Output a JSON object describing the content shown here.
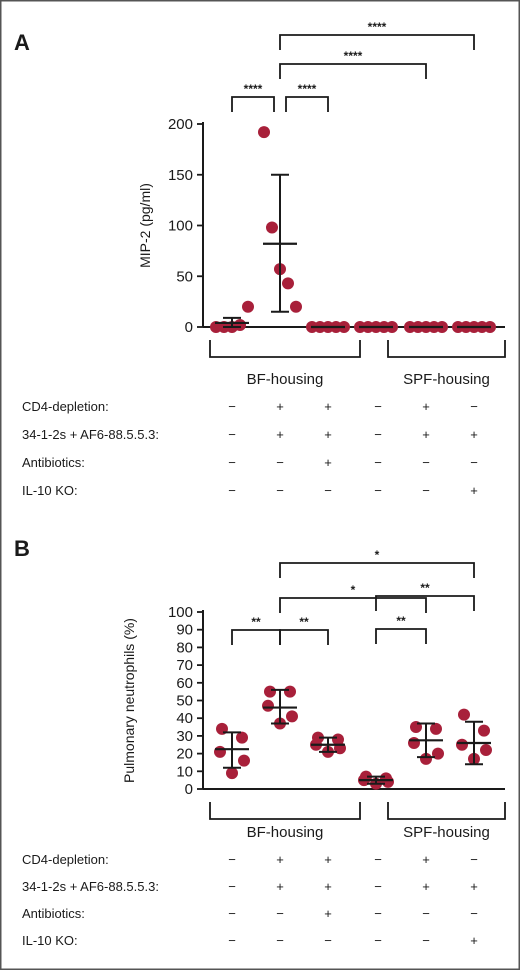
{
  "colors": {
    "dot": "#a8203a",
    "line": "#1a1a1a",
    "border": "#555555"
  },
  "chart_data": [
    {
      "type": "scatter",
      "panel": "A",
      "ylabel": "MIP-2 (pg/ml)",
      "ylim": [
        0,
        200
      ],
      "yticks": [
        0,
        50,
        100,
        150,
        200
      ],
      "categories": [
        "1",
        "2",
        "3",
        "4",
        "5",
        "6"
      ],
      "points": [
        [
          0,
          0,
          0,
          2,
          20
        ],
        [
          192,
          98,
          57,
          43,
          20
        ],
        [
          0,
          0,
          0,
          0,
          0
        ],
        [
          0,
          0,
          0,
          0,
          0
        ],
        [
          0,
          0,
          0,
          0,
          0
        ],
        [
          0,
          0,
          0,
          0,
          0
        ]
      ],
      "means": [
        4,
        82,
        0,
        0,
        0,
        0
      ],
      "sd_low": [
        0,
        15,
        0,
        0,
        0,
        0
      ],
      "sd_high": [
        9,
        150,
        0,
        0,
        0,
        0
      ],
      "comparisons": [
        {
          "from": 0,
          "to": 1,
          "label": "****",
          "level": 0
        },
        {
          "from": 1,
          "to": 2,
          "label": "****",
          "level": 0
        },
        {
          "from": 1,
          "to": 4,
          "label": "****",
          "level": 1
        },
        {
          "from": 1,
          "to": 5,
          "label": "****",
          "level": 2
        }
      ],
      "groups": [
        "BF-housing",
        "SPF-housing"
      ],
      "conditions": [
        {
          "label": "CD4-depletion:",
          "values": [
            "−",
            "+",
            "+",
            "−",
            "+",
            "−"
          ]
        },
        {
          "label": "34-1-2s + AF6-88.5.5.3:",
          "values": [
            "−",
            "+",
            "+",
            "−",
            "+",
            "+"
          ]
        },
        {
          "label": "Antibiotics:",
          "values": [
            "−",
            "−",
            "+",
            "−",
            "−",
            "−"
          ]
        },
        {
          "label": "IL-10 KO:",
          "values": [
            "−",
            "−",
            "−",
            "−",
            "−",
            "+"
          ]
        }
      ]
    },
    {
      "type": "scatter",
      "panel": "B",
      "ylabel": "Pulmonary neutrophils (%)",
      "ylim": [
        0,
        100
      ],
      "yticks": [
        0,
        10,
        20,
        30,
        40,
        50,
        60,
        70,
        80,
        90,
        100
      ],
      "categories": [
        "1",
        "2",
        "3",
        "4",
        "5",
        "6"
      ],
      "points": [
        [
          34,
          29,
          21,
          16,
          9
        ],
        [
          55,
          55,
          47,
          41,
          37
        ],
        [
          29,
          28,
          25,
          23,
          21
        ],
        [
          7,
          6,
          5,
          4,
          3
        ],
        [
          35,
          34,
          26,
          20,
          17
        ],
        [
          42,
          33,
          25,
          22,
          17
        ]
      ],
      "means": [
        22.5,
        46,
        25,
        5,
        27.5,
        26
      ],
      "sd_low": [
        12,
        37,
        21,
        3,
        18,
        14
      ],
      "sd_high": [
        32,
        56,
        29,
        7,
        37,
        38
      ],
      "comparisons": [
        {
          "from": 0,
          "to": 1,
          "label": "**",
          "level": 0
        },
        {
          "from": 1,
          "to": 2,
          "label": "**",
          "level": 0
        },
        {
          "from": 3,
          "to": 4,
          "label": "**",
          "level": 0
        },
        {
          "from": 3,
          "to": 5,
          "label": "**",
          "level": 1
        },
        {
          "from": 1,
          "to": 4,
          "label": "*",
          "level": 2
        },
        {
          "from": 1,
          "to": 5,
          "label": "*",
          "level": 3
        }
      ],
      "groups": [
        "BF-housing",
        "SPF-housing"
      ],
      "conditions": [
        {
          "label": "CD4-depletion:",
          "values": [
            "−",
            "+",
            "+",
            "−",
            "+",
            "−"
          ]
        },
        {
          "label": "34-1-2s + AF6-88.5.5.3:",
          "values": [
            "−",
            "+",
            "+",
            "−",
            "+",
            "+"
          ]
        },
        {
          "label": "Antibiotics:",
          "values": [
            "−",
            "−",
            "+",
            "−",
            "−",
            "−"
          ]
        },
        {
          "label": "IL-10 KO:",
          "values": [
            "−",
            "−",
            "−",
            "−",
            "−",
            "+"
          ]
        }
      ]
    }
  ]
}
